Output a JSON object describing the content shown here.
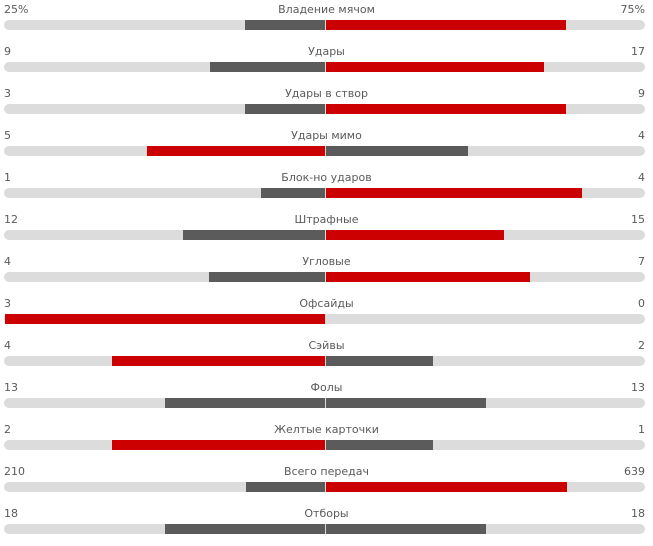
{
  "colors": {
    "leading": "#cc0000",
    "trailing": "#5b5b5b",
    "track": "#dcdcdc",
    "text": "#5a5a5a"
  },
  "stats": [
    {
      "label": "Владение мячом",
      "left": "25%",
      "right": "75%",
      "left_value": 25,
      "right_value": 75,
      "max": 100
    },
    {
      "label": "Удары",
      "left": "9",
      "right": "17",
      "left_value": 9,
      "right_value": 17,
      "max": 25
    },
    {
      "label": "Удары в створ",
      "left": "3",
      "right": "9",
      "left_value": 3,
      "right_value": 9,
      "max": 12
    },
    {
      "label": "Удары мимо",
      "left": "5",
      "right": "4",
      "left_value": 5,
      "right_value": 4,
      "max": 9
    },
    {
      "label": "Блок-но ударов",
      "left": "1",
      "right": "4",
      "left_value": 1,
      "right_value": 4,
      "max": 5
    },
    {
      "label": "Штрафные",
      "left": "12",
      "right": "15",
      "left_value": 12,
      "right_value": 15,
      "max": 27
    },
    {
      "label": "Угловые",
      "left": "4",
      "right": "7",
      "left_value": 4,
      "right_value": 7,
      "max": 11
    },
    {
      "label": "Офсайды",
      "left": "3",
      "right": "0",
      "left_value": 3,
      "right_value": 0,
      "max": 3
    },
    {
      "label": "Сэйвы",
      "left": "4",
      "right": "2",
      "left_value": 4,
      "right_value": 2,
      "max": 6
    },
    {
      "label": "Фолы",
      "left": "13",
      "right": "13",
      "left_value": 13,
      "right_value": 13,
      "max": 26
    },
    {
      "label": "Желтые карточки",
      "left": "2",
      "right": "1",
      "left_value": 2,
      "right_value": 1,
      "max": 3
    },
    {
      "label": "Всего передач",
      "left": "210",
      "right": "639",
      "left_value": 210,
      "right_value": 639,
      "max": 849
    },
    {
      "label": "Отборы",
      "left": "18",
      "right": "18",
      "left_value": 18,
      "right_value": 18,
      "max": 36
    }
  ]
}
